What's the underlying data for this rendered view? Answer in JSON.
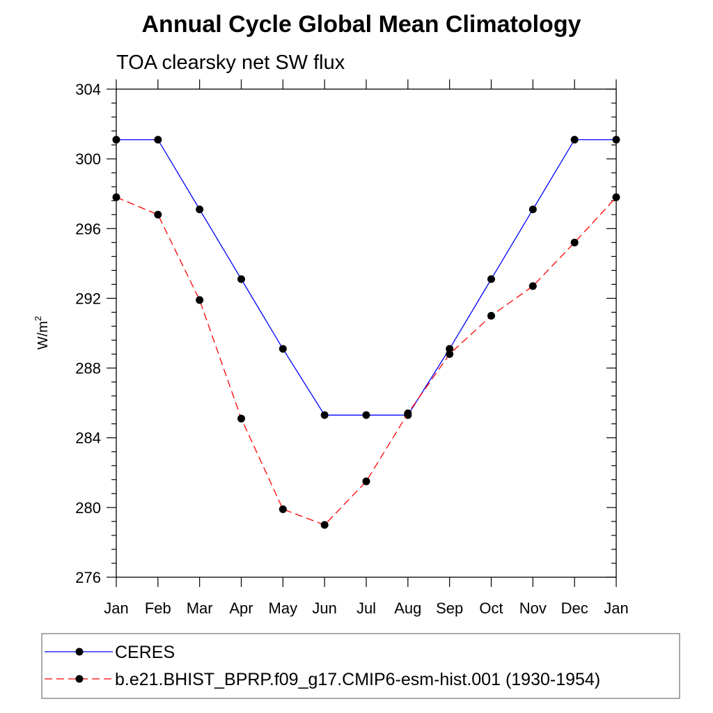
{
  "chart_data": {
    "type": "line",
    "title": "Annual Cycle Global Mean Climatology",
    "subtitle": "TOA clearsky net SW flux",
    "ylabel": "W/m",
    "ylabel_sup": "2",
    "xlabel": "",
    "categories": [
      "Jan",
      "Feb",
      "Mar",
      "Apr",
      "May",
      "Jun",
      "Jul",
      "Aug",
      "Sep",
      "Oct",
      "Nov",
      "Dec",
      "Jan"
    ],
    "ylim": [
      276,
      304
    ],
    "yticks": [
      276,
      280,
      284,
      288,
      292,
      296,
      300,
      304
    ],
    "legend_position": "bottom",
    "series": [
      {
        "name": "CERES",
        "color": "#0000ff",
        "dash": "solid",
        "values": [
          301.1,
          301.1,
          297.1,
          293.1,
          289.1,
          285.3,
          285.3,
          285.3,
          289.1,
          293.1,
          297.1,
          301.1,
          301.1
        ]
      },
      {
        "name": "b.e21.BHIST_BPRP.f09_g17.CMIP6-esm-hist.001 (1930-1954)",
        "color": "#ff0000",
        "dash": "dashed",
        "values": [
          297.8,
          296.8,
          291.9,
          285.1,
          279.9,
          279.0,
          281.5,
          285.4,
          288.8,
          291.0,
          292.7,
          295.2,
          297.8
        ]
      }
    ]
  }
}
